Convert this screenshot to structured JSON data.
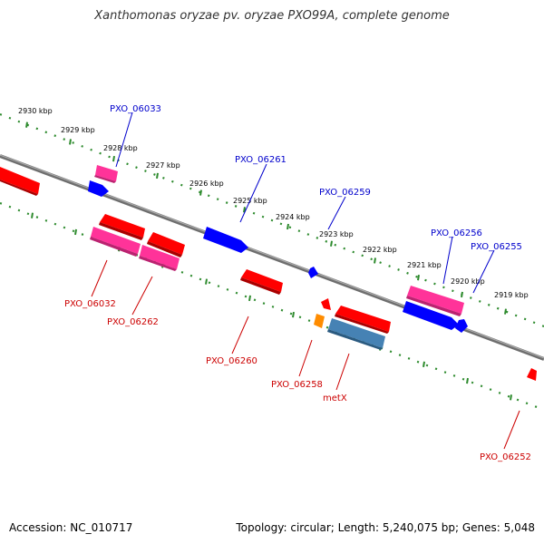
{
  "title": "Xanthomonas oryzae pv. oryzae PXO99A, complete genome",
  "footer": {
    "accession": "Accession: NC_010717",
    "summary": "Topology: circular; Length: 5,240,075 bp; Genes: 5,048"
  },
  "colors": {
    "backbone": "#808080",
    "ruler_dots": "#2e8b2e",
    "red": "#ff0000",
    "pink": "#ff3399",
    "blue": "#0000ff",
    "orange": "#ff8c00",
    "steel": "#4682b4",
    "label_forward": "#0000cc",
    "label_reverse": "#cc0000"
  },
  "ticks": [
    "2930 kbp",
    "2929 kbp",
    "2928 kbp",
    "2927 kbp",
    "2926 kbp",
    "2925 kbp",
    "2924 kbp",
    "2923 kbp",
    "2922 kbp",
    "2921 kbp",
    "2920 kbp",
    "2919 kbp"
  ],
  "gene_labels_forward": [
    "PXO_06033",
    "PXO_06261",
    "PXO_06259",
    "PXO_06256",
    "PXO_06255"
  ],
  "gene_labels_reverse": [
    "PXO_06032",
    "PXO_06262",
    "PXO_06260",
    "PXO_06258",
    "metX",
    "PXO_06252"
  ]
}
